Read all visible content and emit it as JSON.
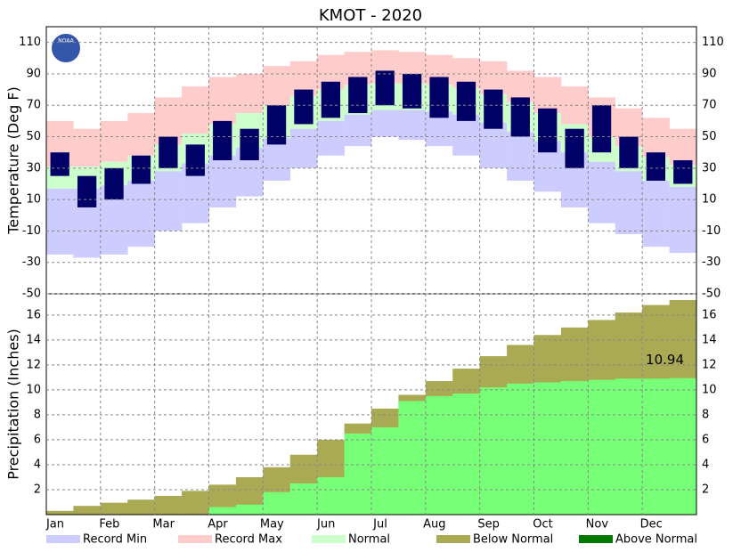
{
  "title": "KMOT - 2020",
  "logo_text": "NOAA",
  "months": [
    "Jan",
    "Feb",
    "Mar",
    "Apr",
    "May",
    "Jun",
    "Jul",
    "Aug",
    "Sep",
    "Oct",
    "Nov",
    "Dec"
  ],
  "legend": [
    {
      "name": "Record Min",
      "color": "#ccccff"
    },
    {
      "name": "Record Max",
      "color": "#ffcccc"
    },
    {
      "name": "Normal",
      "color": "#ccffcc"
    },
    {
      "name": "Below Normal",
      "color": "#aaaa55"
    },
    {
      "name": "Above Normal",
      "color": "#007700"
    }
  ],
  "chart_data": [
    {
      "type": "temperature-band",
      "ylabel": "Temperature (Deg F)",
      "ylim": [
        -50,
        120
      ],
      "yticks": [
        -50,
        -30,
        -10,
        10,
        30,
        50,
        70,
        90,
        110
      ],
      "grid": true,
      "actual_color": "#000066",
      "record_max": [
        60,
        55,
        60,
        65,
        75,
        82,
        88,
        90,
        95,
        98,
        102,
        104,
        105,
        104,
        102,
        100,
        98,
        92,
        88,
        82,
        75,
        68,
        62,
        55
      ],
      "normal_high": [
        31,
        31,
        34,
        38,
        45,
        52,
        58,
        65,
        70,
        76,
        80,
        83,
        84,
        84,
        83,
        81,
        77,
        72,
        65,
        58,
        50,
        44,
        37,
        32
      ],
      "normal_low": [
        17,
        17,
        19,
        22,
        28,
        33,
        38,
        43,
        49,
        55,
        60,
        64,
        67,
        67,
        66,
        64,
        59,
        53,
        47,
        40,
        34,
        28,
        22,
        18
      ],
      "record_min": [
        -25,
        -27,
        -25,
        -20,
        -10,
        -5,
        5,
        12,
        22,
        30,
        38,
        44,
        50,
        48,
        44,
        38,
        30,
        22,
        15,
        5,
        -5,
        -12,
        -20,
        -24
      ],
      "actual_high": [
        40,
        25,
        30,
        38,
        50,
        45,
        60,
        55,
        70,
        80,
        85,
        88,
        92,
        90,
        88,
        85,
        80,
        75,
        68,
        55,
        70,
        50,
        40,
        35
      ],
      "actual_low": [
        25,
        5,
        10,
        20,
        30,
        25,
        35,
        35,
        45,
        58,
        62,
        65,
        70,
        68,
        62,
        60,
        55,
        50,
        40,
        30,
        40,
        30,
        22,
        20
      ]
    },
    {
      "type": "precip-cumulative",
      "ylabel": "Precipitation (Inches)",
      "ylim": [
        0,
        17.7
      ],
      "yticks": [
        2,
        4,
        6,
        8,
        10,
        12,
        14,
        16
      ],
      "grid": true,
      "normal": [
        0.3,
        0.7,
        0.95,
        1.2,
        1.5,
        1.9,
        2.4,
        3.0,
        3.8,
        4.8,
        6.0,
        7.3,
        8.5,
        9.6,
        10.7,
        11.7,
        12.7,
        13.6,
        14.4,
        15.0,
        15.6,
        16.2,
        16.8,
        17.2
      ],
      "actual": [
        0,
        0,
        0,
        0,
        0,
        0,
        0.6,
        0.8,
        1.8,
        2.5,
        3.0,
        6.5,
        7.0,
        9.1,
        9.5,
        9.7,
        10.2,
        10.5,
        10.6,
        10.7,
        10.8,
        10.9,
        10.9,
        10.94
      ],
      "value_labels": [
        "10.94"
      ]
    }
  ]
}
